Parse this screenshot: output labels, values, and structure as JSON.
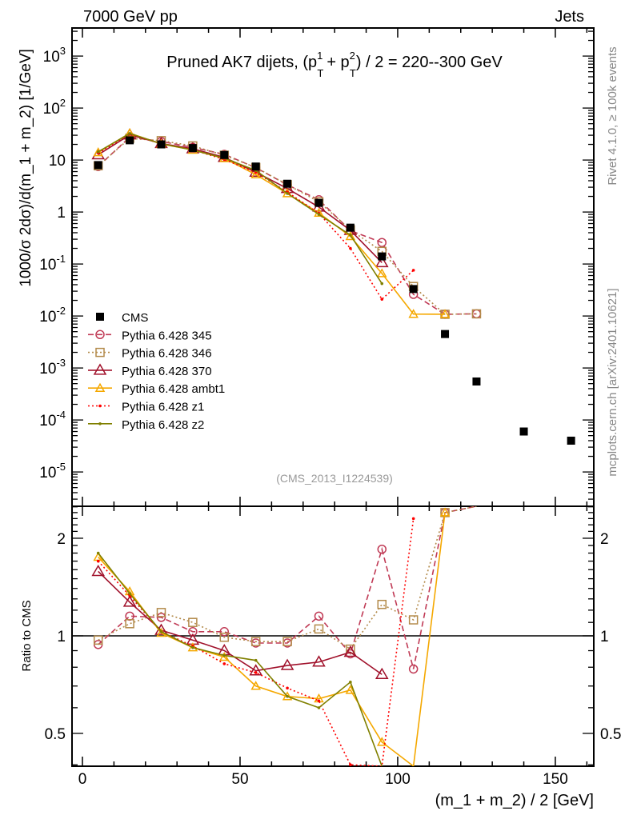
{
  "header": {
    "left": "7000 GeV pp",
    "right": "Jets"
  },
  "side": {
    "rivet": "Rivet 4.1.0, ≥ 100k events",
    "mcplots": "mcplots.cern.ch [arXiv:2401.10621]"
  },
  "chart_data": {
    "type": "line",
    "title": "Pruned AK7 dijets, (p_T^1 + p_T^2) / 2 = 220--300 GeV",
    "title_main": "Pruned AK7 dijets, (p",
    "title_rest": ") / 2 = 220--300 GeV",
    "analysis": "(CMS_2013_I1224539)",
    "xlabel": "(m_1 + m_2) / 2 [GeV]",
    "ylabel": "1000/σ  2dσ)/d(m_1 + m_2) [1/GeV]",
    "ratio_ylabel": "Ratio to CMS",
    "xlim": [
      -3.3,
      162.2
    ],
    "ylim_log10": [
      -5.66,
      3.54
    ],
    "ratio_ylim": [
      0.396,
      2.51
    ],
    "xticks": [
      "0",
      "50",
      "100",
      "150"
    ],
    "xtick_values": [
      0,
      50,
      100,
      150
    ],
    "yticks": [
      "10^3",
      "10^2",
      "10",
      "1",
      "10^-1",
      "10^-2",
      "10^-3",
      "10^-4",
      "10^-5"
    ],
    "ratio_yticks": [
      "2",
      "1",
      "0.5"
    ],
    "x": [
      5,
      15,
      25,
      35,
      45,
      55,
      65,
      75,
      85,
      95,
      105,
      115,
      125,
      140,
      155
    ],
    "data": {
      "name": "CMS",
      "values": [
        8,
        24,
        20,
        17,
        12.5,
        7.5,
        3.5,
        1.5,
        0.5,
        0.14,
        0.033,
        0.0045,
        0.00055,
        6e-05,
        4e-05
      ],
      "color": "#000000"
    },
    "series": [
      {
        "name": "Pythia 6.428 345",
        "style": "dashed",
        "marker": "circle",
        "color": "#c03a55",
        "ratio": [
          0.94,
          1.15,
          1.14,
          1.03,
          1.03,
          0.95,
          0.95,
          1.15,
          0.88,
          1.85,
          0.79,
          2.4,
          20,
          null,
          null
        ]
      },
      {
        "name": "Pythia 6.428 346",
        "style": "dotted",
        "marker": "square",
        "color": "#b38a4a",
        "ratio": [
          0.97,
          1.09,
          1.18,
          1.1,
          0.99,
          0.96,
          0.96,
          1.05,
          0.91,
          1.25,
          1.12,
          2.4,
          20,
          null,
          null
        ]
      },
      {
        "name": "Pythia 6.428 370",
        "style": "solid",
        "marker": "triangle",
        "color": "#a0102a",
        "ratio": [
          1.58,
          1.27,
          1.04,
          0.97,
          0.9,
          0.78,
          0.81,
          0.83,
          0.89,
          0.76,
          null,
          null,
          null,
          null,
          null
        ]
      },
      {
        "name": "Pythia 6.428 ambt1",
        "style": "solid",
        "marker": "triangle-small",
        "color": "#f5a800",
        "ratio": [
          1.75,
          1.37,
          1.02,
          0.92,
          0.86,
          0.7,
          0.65,
          0.64,
          0.68,
          0.47,
          0.33,
          2.4,
          null,
          null,
          null
        ]
      },
      {
        "name": "Pythia 6.428 z1",
        "style": "dotted",
        "marker": "dot",
        "color": "#ff0000",
        "ratio": [
          1.7,
          1.33,
          1.03,
          0.93,
          0.82,
          0.77,
          0.69,
          0.63,
          0.4,
          0.15,
          2.3,
          null,
          null,
          null,
          null
        ]
      },
      {
        "name": "Pythia 6.428 z2",
        "style": "solid",
        "marker": "dot",
        "color": "#808000",
        "ratio": [
          1.8,
          1.35,
          1.03,
          0.92,
          0.87,
          0.84,
          0.65,
          0.6,
          0.72,
          0.3,
          null,
          null,
          null,
          null,
          null
        ]
      }
    ]
  }
}
